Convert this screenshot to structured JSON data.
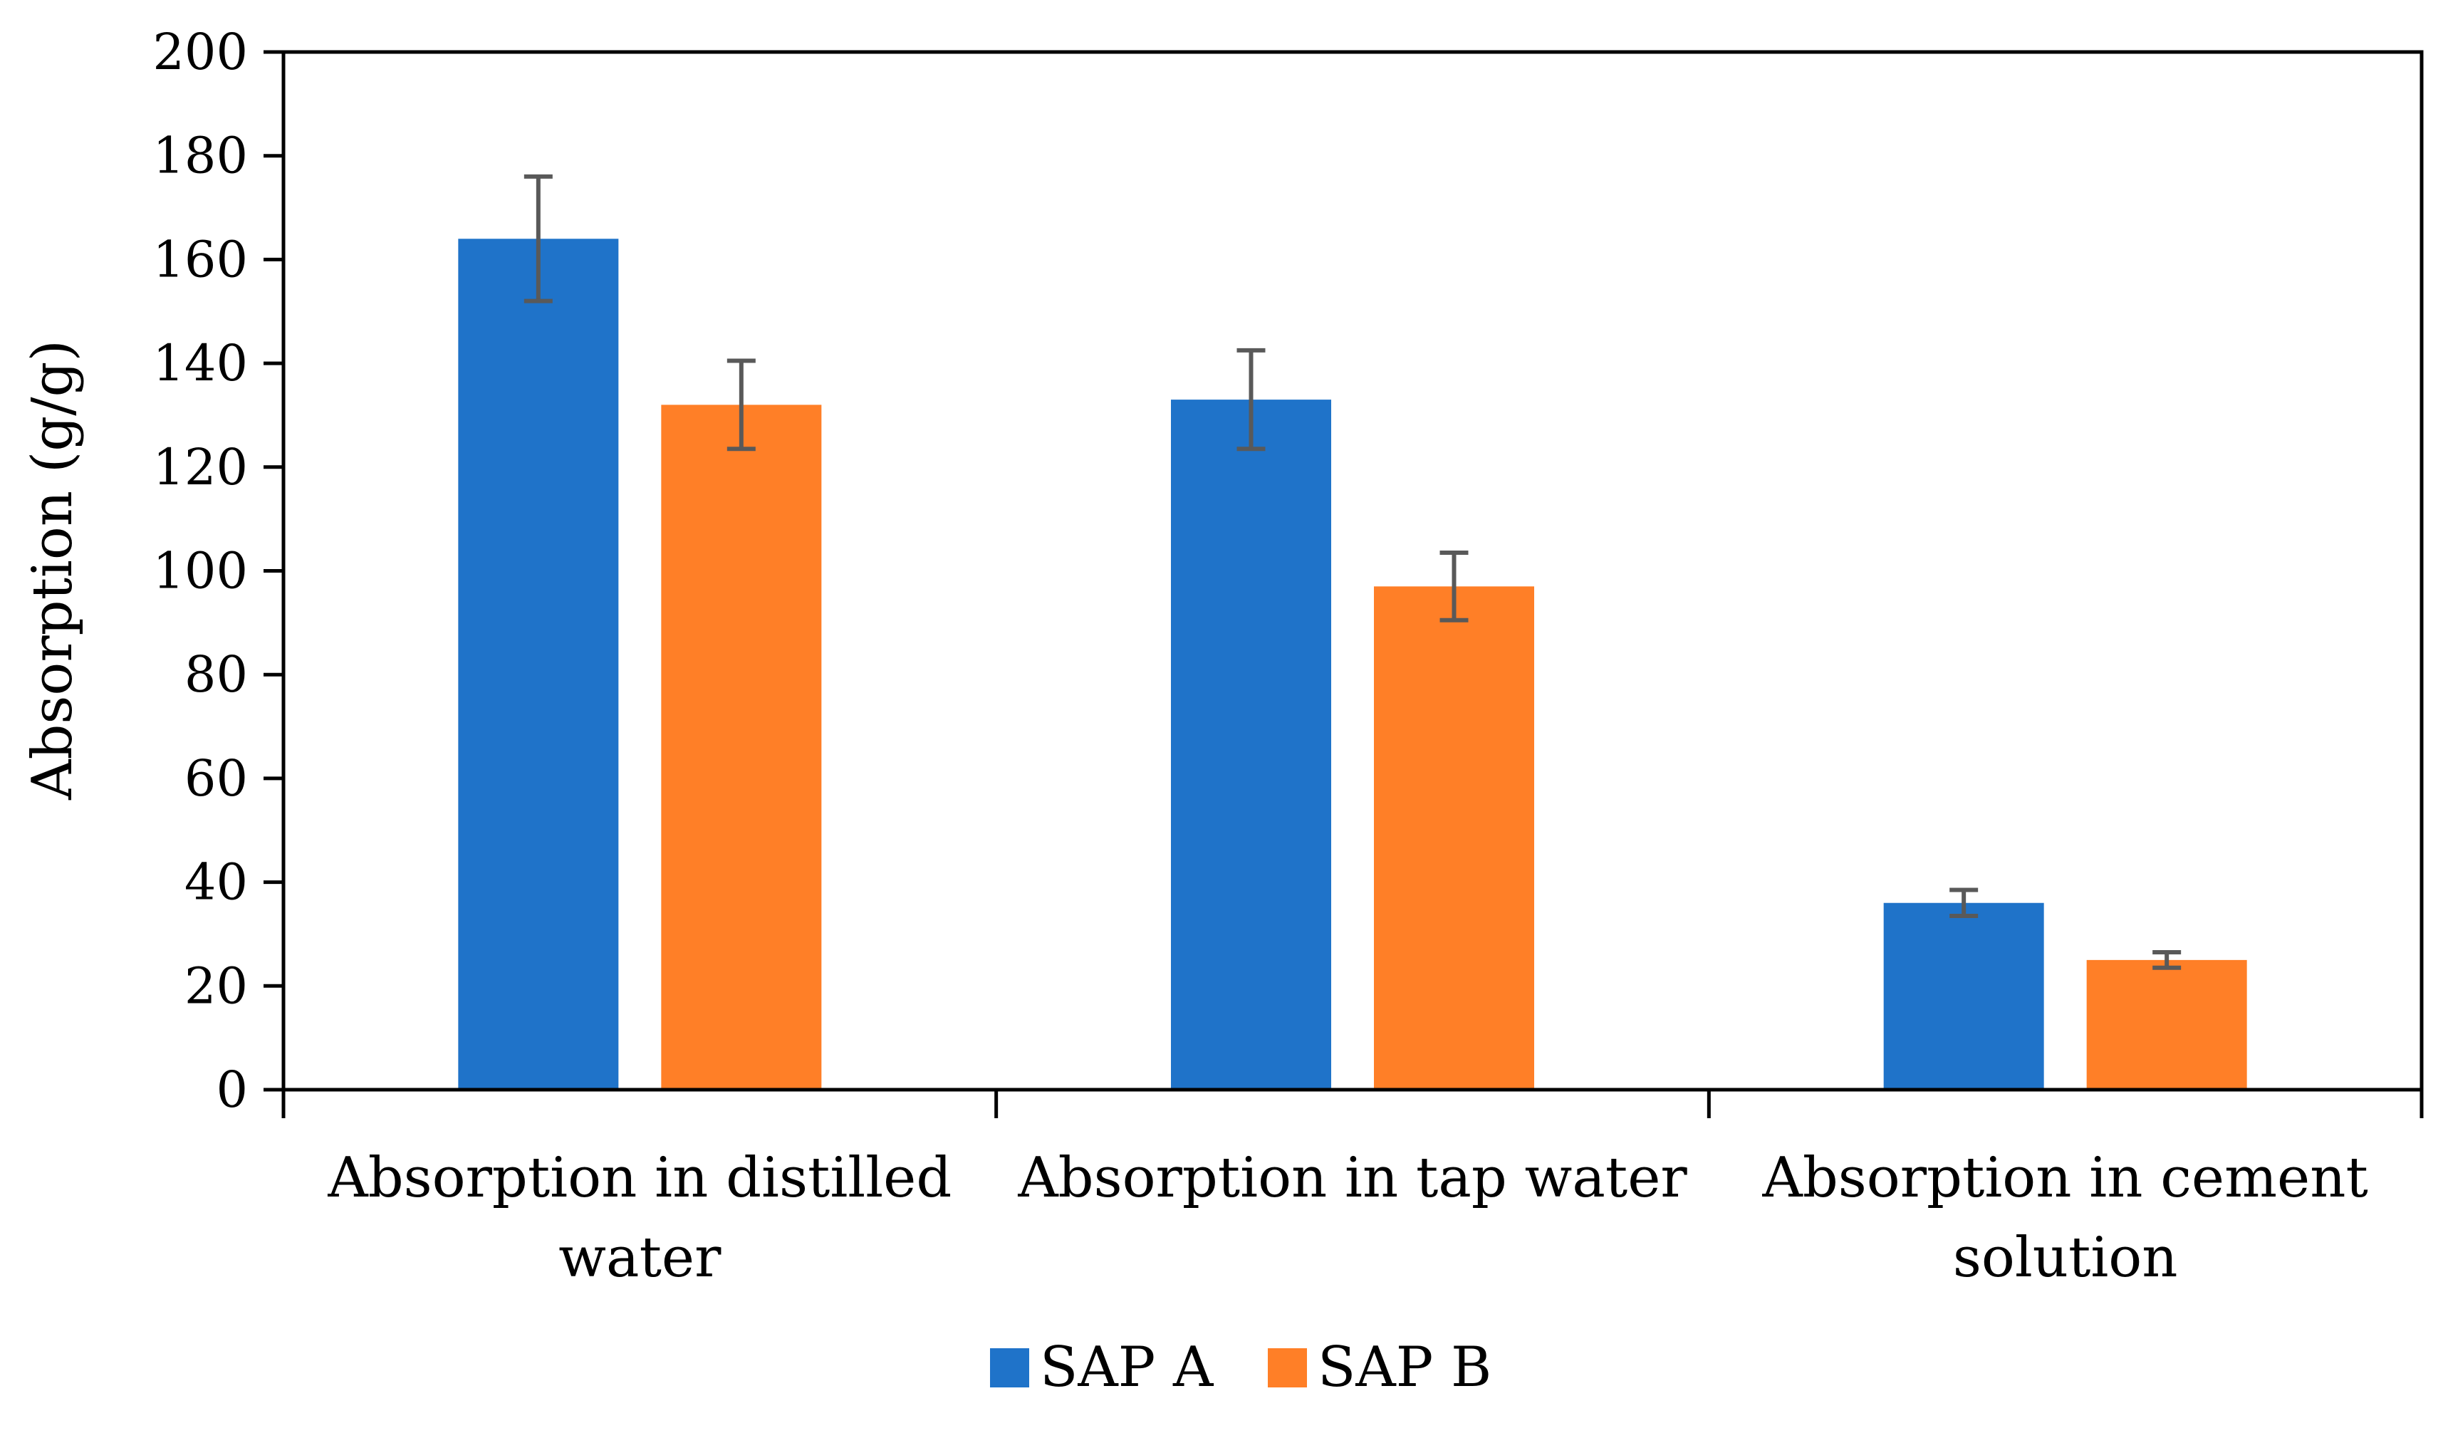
{
  "chart_data": {
    "type": "bar",
    "title": "",
    "xlabel": "",
    "ylabel": "Absorption (g/g)",
    "ylim": [
      0,
      200
    ],
    "yticks": [
      0,
      20,
      40,
      60,
      80,
      100,
      120,
      140,
      160,
      180,
      200
    ],
    "grid": false,
    "legend_position": "bottom-center",
    "categories": [
      [
        "Absorption in distilled",
        "water"
      ],
      [
        "Absorption in tap water"
      ],
      [
        "Absorption in cement",
        "solution"
      ]
    ],
    "series": [
      {
        "name": "SAP A",
        "color": "#1F73C9",
        "values": [
          164,
          133,
          36
        ],
        "errors": [
          12,
          9.5,
          2.5
        ]
      },
      {
        "name": "SAP B",
        "color": "#FF7F27",
        "values": [
          132,
          97,
          25
        ],
        "errors": [
          8.5,
          6.5,
          1.5
        ]
      }
    ],
    "error_bar_color": "#595959"
  }
}
